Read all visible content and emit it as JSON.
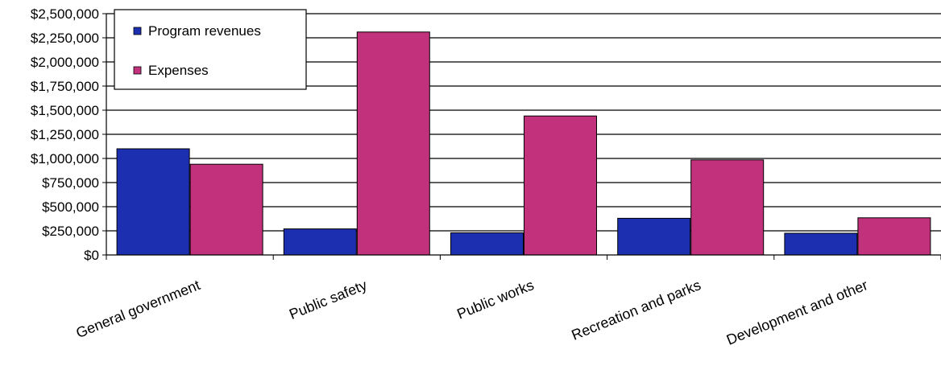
{
  "chart_data": {
    "type": "bar",
    "title": "",
    "xlabel": "",
    "ylabel": "",
    "categories": [
      "General government",
      "Public safety",
      "Public works",
      "Recreation and parks",
      "Development and other"
    ],
    "series": [
      {
        "name": "Program revenues",
        "values": [
          1100000,
          270000,
          230000,
          380000,
          225000
        ]
      },
      {
        "name": "Expenses",
        "values": [
          940000,
          2310000,
          1440000,
          985000,
          385000
        ]
      }
    ],
    "ylim": [
      0,
      2500000
    ],
    "yticks": [
      0,
      250000,
      500000,
      750000,
      1000000,
      1250000,
      1500000,
      1750000,
      2000000,
      2250000,
      2500000
    ],
    "ytick_labels": [
      "$0",
      "$250,000",
      "$500,000",
      "$750,000",
      "$1,000,000",
      "$1,250,000",
      "$1,500,000",
      "$1,750,000",
      "$2,000,000",
      "$2,250,000",
      "$2,500,000"
    ],
    "grid": true,
    "legend_position": "top-left",
    "colors": {
      "Program revenues": "#1c2fb0",
      "Expenses": "#c2317b"
    }
  }
}
